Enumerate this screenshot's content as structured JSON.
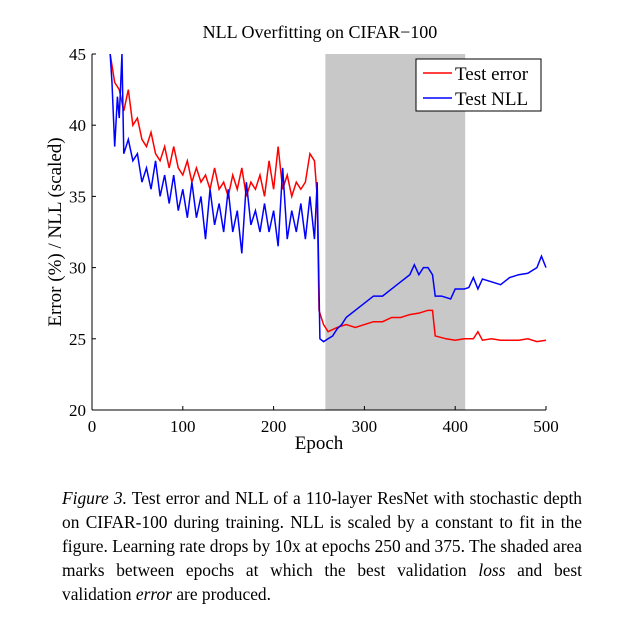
{
  "chart_data": {
    "type": "line",
    "title": "NLL Overfitting on CIFAR−100",
    "xlabel": "Epoch",
    "ylabel": "Error (%) / NLL (scaled)",
    "xlim": [
      0,
      500
    ],
    "ylim": [
      20,
      45
    ],
    "xticks": [
      "0",
      "100",
      "200",
      "300",
      "400",
      "500"
    ],
    "yticks": [
      "20",
      "25",
      "30",
      "35",
      "40",
      "45"
    ],
    "grid": false,
    "legend_position": "top-right",
    "shaded_region": {
      "from_epoch": 257,
      "to_epoch": 411,
      "color": "#c8c8c8"
    },
    "series": [
      {
        "name": "Test error",
        "color": "#ff0000",
        "x": [
          20,
          25,
          30,
          35,
          40,
          45,
          50,
          55,
          60,
          65,
          70,
          75,
          80,
          85,
          90,
          95,
          100,
          105,
          110,
          115,
          120,
          125,
          130,
          135,
          140,
          145,
          150,
          155,
          160,
          165,
          170,
          175,
          180,
          185,
          190,
          195,
          200,
          205,
          210,
          215,
          220,
          225,
          230,
          235,
          240,
          245,
          248,
          250,
          255,
          260,
          270,
          280,
          290,
          300,
          310,
          320,
          330,
          340,
          350,
          360,
          370,
          375,
          378,
          390,
          400,
          410,
          420,
          425,
          430,
          440,
          450,
          460,
          470,
          480,
          490,
          500
        ],
        "y": [
          45,
          43,
          42.5,
          41,
          42.5,
          40,
          40.5,
          39,
          38.5,
          39.5,
          38,
          37.5,
          38.5,
          37,
          38.5,
          37,
          36.5,
          37.5,
          36,
          37,
          36,
          36.5,
          35.5,
          37,
          35.5,
          36,
          35,
          36.5,
          35.5,
          37,
          35,
          36,
          35.5,
          36.5,
          35,
          37.5,
          35.5,
          38.5,
          35.5,
          36.5,
          35,
          36,
          35.5,
          36,
          38,
          37.5,
          35,
          27,
          26,
          25.5,
          25.8,
          26,
          25.8,
          26,
          26.2,
          26.2,
          26.5,
          26.5,
          26.7,
          26.8,
          27,
          27,
          25.2,
          25,
          24.9,
          25,
          25,
          25.5,
          24.9,
          25,
          24.9,
          24.9,
          24.9,
          25,
          24.8,
          24.9
        ]
      },
      {
        "name": "Test NLL",
        "color": "#0000ff",
        "x": [
          20,
          22,
          25,
          28,
          30,
          33,
          35,
          40,
          45,
          50,
          55,
          60,
          65,
          70,
          75,
          80,
          85,
          90,
          95,
          100,
          105,
          110,
          115,
          120,
          125,
          130,
          135,
          140,
          145,
          150,
          155,
          160,
          165,
          170,
          175,
          180,
          185,
          190,
          195,
          200,
          205,
          210,
          215,
          220,
          225,
          230,
          235,
          240,
          245,
          248,
          251,
          255,
          260,
          265,
          270,
          275,
          280,
          290,
          300,
          310,
          320,
          330,
          340,
          350,
          355,
          360,
          365,
          370,
          375,
          378,
          385,
          395,
          400,
          410,
          415,
          420,
          425,
          430,
          440,
          450,
          460,
          470,
          480,
          490,
          495,
          500
        ],
        "y": [
          45,
          43,
          38.5,
          42,
          40.5,
          45,
          38,
          39,
          37.5,
          38,
          36,
          37,
          35.5,
          37.5,
          35,
          36.5,
          34.5,
          36.5,
          34,
          35.5,
          33.5,
          36,
          33.5,
          35,
          32,
          35.5,
          33,
          34.5,
          32.5,
          35.5,
          32.5,
          34,
          31,
          36,
          33,
          34,
          32.5,
          34.5,
          32.5,
          34,
          31.5,
          37,
          32,
          34,
          32.5,
          34.5,
          32,
          35,
          32,
          36,
          25,
          24.8,
          25,
          25.2,
          25.7,
          26,
          26.5,
          27,
          27.5,
          28,
          28,
          28.5,
          29,
          29.5,
          30.2,
          29.5,
          30,
          30,
          29.5,
          28,
          28,
          27.8,
          28.5,
          28.5,
          28.6,
          29.3,
          28.5,
          29.2,
          29,
          28.8,
          29.3,
          29.5,
          29.6,
          30,
          30.8,
          30
        ]
      }
    ]
  },
  "caption": {
    "label": "Figure 3.",
    "text_1": " Test error and NLL of a 110-layer ResNet with stochastic depth on CIFAR-100 during training. NLL is scaled by a constant to fit in the figure. Learning rate drops by 10x at epochs 250 and 375. The shaded area marks between epochs at which the best validation ",
    "em_1": "loss",
    "text_2": " and best validation ",
    "em_2": "error",
    "text_3": " are produced."
  }
}
